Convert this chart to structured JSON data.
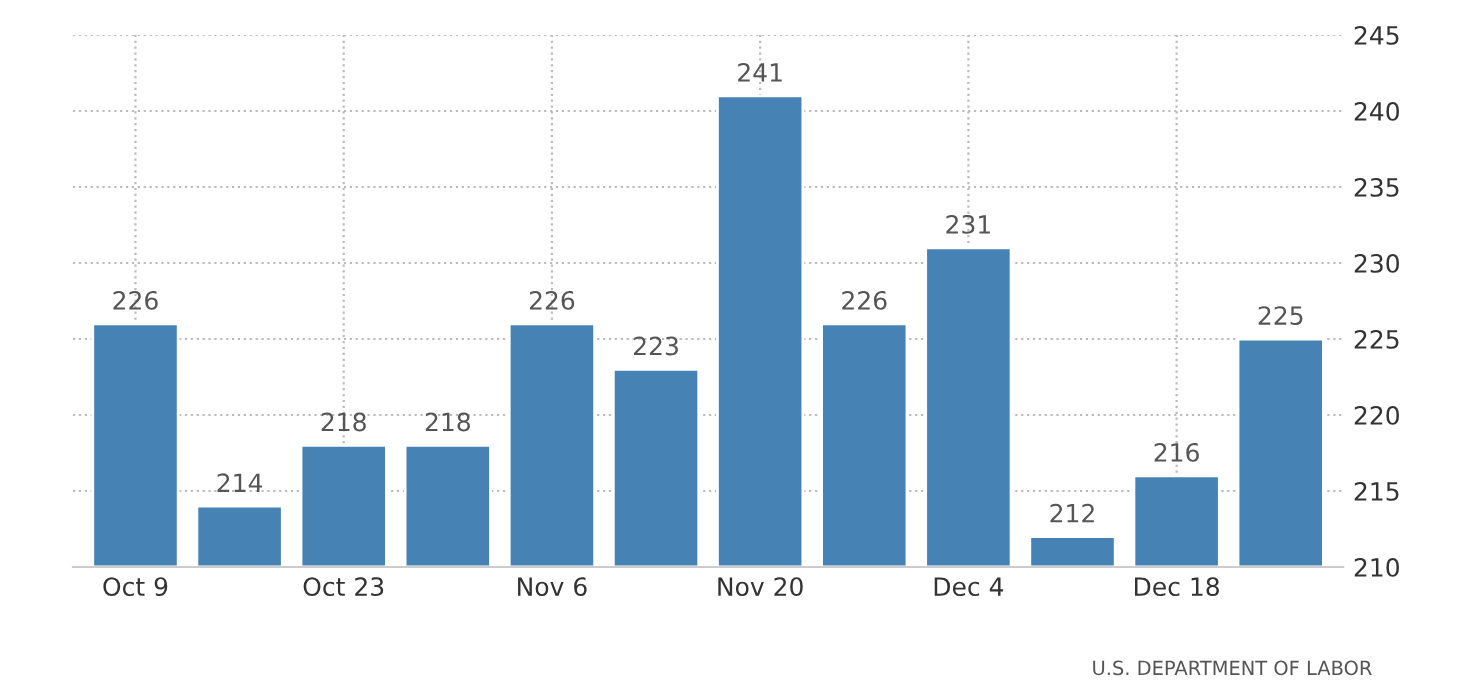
{
  "chart_data": {
    "type": "bar",
    "categories": [
      "Oct 9",
      null,
      "Oct 23",
      null,
      "Nov 6",
      null,
      "Nov 20",
      null,
      "Dec 4",
      null,
      "Dec 18",
      null
    ],
    "values": [
      226,
      214,
      218,
      218,
      226,
      223,
      241,
      226,
      231,
      212,
      216,
      225
    ],
    "color": "#4682b4",
    "ylim": [
      210,
      245
    ],
    "yticks": [
      210,
      215,
      220,
      225,
      230,
      235,
      240,
      245
    ],
    "grid": true,
    "data_labels": true,
    "annotations": [
      "U.S. DEPARTMENT OF LABOR"
    ]
  }
}
